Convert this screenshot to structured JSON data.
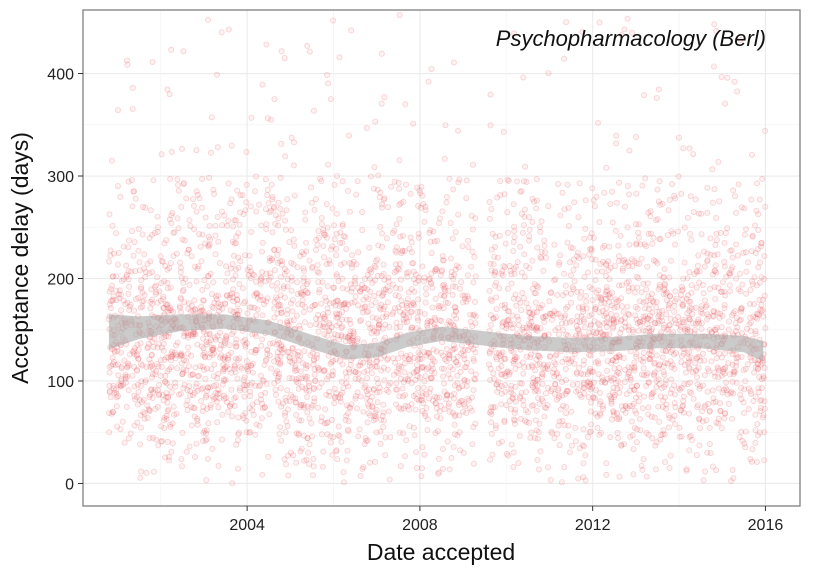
{
  "chart_data": {
    "type": "scatter",
    "title": "Psychopharmacology (Berl)",
    "xlabel": "Date accepted",
    "ylabel": "Acceptance delay (days)",
    "xlim": [
      2000.2,
      2016.8
    ],
    "ylim": [
      -22,
      462
    ],
    "x_ticks": [
      2004,
      2008,
      2012,
      2016
    ],
    "x_tick_labels": [
      "2004",
      "2008",
      "2012",
      "2016"
    ],
    "y_ticks": [
      0,
      100,
      200,
      300,
      400
    ],
    "y_tick_labels": [
      "0",
      "100",
      "200",
      "300",
      "400"
    ],
    "grid": true,
    "legend": "none",
    "colors": {
      "points": "#e8424a",
      "smooth_band": "#a9a9a9",
      "grid": "#ebebeb",
      "panel_border": "#7f7f7f"
    },
    "scatter": {
      "x_range": [
        2000.8,
        2016.0
      ],
      "y_range": [
        0,
        460
      ],
      "typical_y_center": 125,
      "gap_years": [
        [
          2009.3,
          2009.6
        ]
      ],
      "approx_point_count": 4000
    },
    "smooth": {
      "x": [
        2000.8,
        2001.5,
        2002.5,
        2003.5,
        2004.5,
        2005.5,
        2006.3,
        2007.0,
        2007.7,
        2008.5,
        2009.2,
        2009.8,
        2010.5,
        2011.5,
        2012.5,
        2013.5,
        2014.5,
        2015.5,
        2015.95
      ],
      "y": [
        148,
        152,
        157,
        158,
        152,
        138,
        128,
        130,
        140,
        146,
        143,
        140,
        137,
        135,
        136,
        139,
        139,
        136,
        129
      ],
      "band_halfwidth": [
        17,
        11,
        8,
        7,
        7,
        7,
        7,
        7,
        7,
        7,
        7,
        7,
        7,
        7,
        7,
        7,
        7,
        8,
        10
      ]
    }
  }
}
